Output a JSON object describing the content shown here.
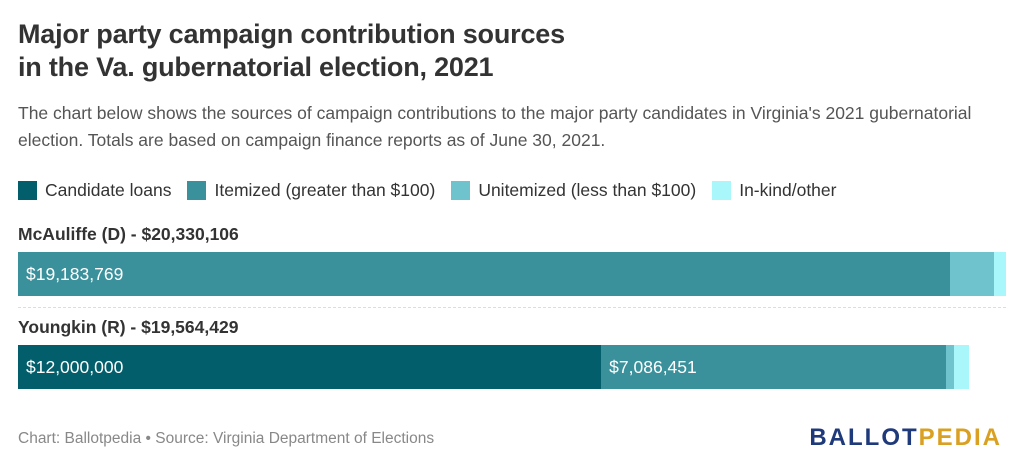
{
  "title_line1": "Major party campaign contribution sources",
  "title_line2": "in the Va. gubernatorial election, 2021",
  "subtitle": "The chart below shows the sources of campaign contributions to the major party candidates in Virginia's 2021 gubernatorial election. Totals are based on campaign finance reports as of June 30, 2021.",
  "footer": {
    "source": "Chart: Ballotpedia • Source: Virginia Department of Elections",
    "brand_part1": "BALLOT",
    "brand_part2": "PEDIA",
    "brand_color1": "#1f3a7a",
    "brand_color2": "#d9a021"
  },
  "chart_data": {
    "type": "bar",
    "orientation": "horizontal",
    "stacked": true,
    "legend_placement": "top-left",
    "grid": false,
    "categories": [
      "McAuliffe (D) - $20,330,106",
      "Youngkin (R) - $19,564,429"
    ],
    "totals": [
      20330106,
      19564429
    ],
    "series": [
      {
        "name": "Candidate loans",
        "color": "#035e6b",
        "values": [
          0,
          12000000
        ],
        "labels": [
          "",
          "$12,000,000"
        ]
      },
      {
        "name": "Itemized (greater than $100)",
        "color": "#3b919b",
        "values": [
          19183769,
          7086451
        ],
        "labels": [
          "$19,183,769",
          "$7,086,451"
        ]
      },
      {
        "name": "Unitemized (less than $100)",
        "color": "#6fc3cd",
        "values": [
          900000,
          180000
        ],
        "labels": [
          "",
          ""
        ]
      },
      {
        "name": "In-kind/other",
        "color": "#a9f7fb",
        "values": [
          246337,
          297978
        ],
        "labels": [
          "",
          ""
        ]
      }
    ]
  }
}
